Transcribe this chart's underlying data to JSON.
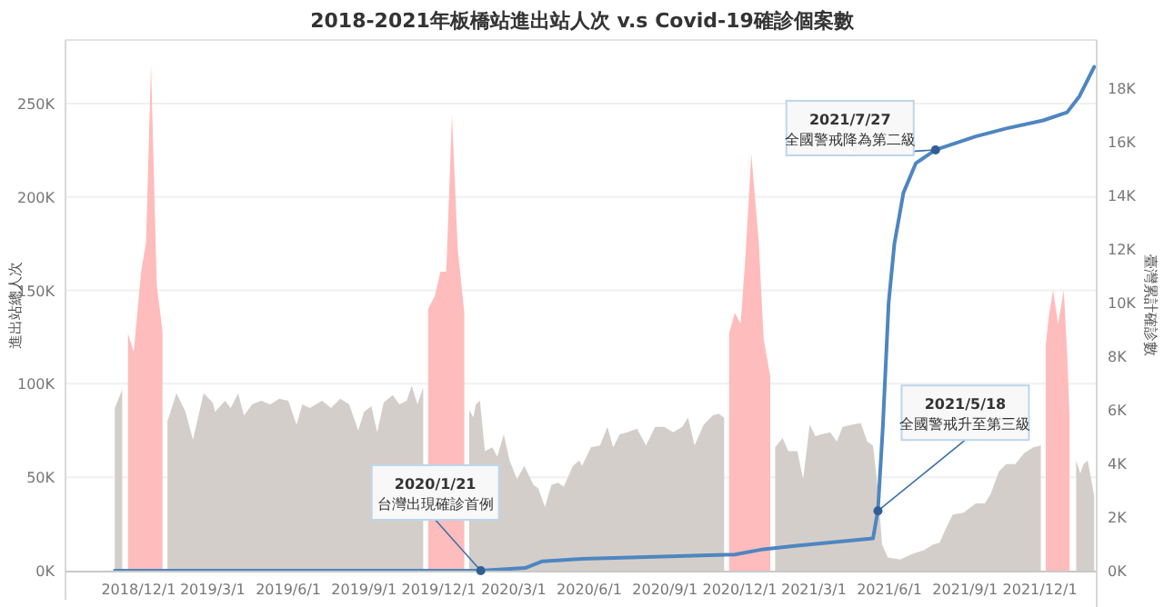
{
  "chart_data": {
    "type": "area",
    "title": "2018-2021年板橋站進出站人次 v.s Covid-19確診個案數",
    "ylabel": "進出站總人次",
    "y2label": "臺灣累計確診數",
    "xlim": [
      "2018-09-03",
      "2022-02-08"
    ],
    "xticks": [
      {
        "value": "2018-12-01",
        "label": "2018/12/1"
      },
      {
        "value": "2019-03-01",
        "label": "2019/3/1"
      },
      {
        "value": "2019-06-01",
        "label": "2019/6/1"
      },
      {
        "value": "2019-09-01",
        "label": "2019/9/1"
      },
      {
        "value": "2019-12-01",
        "label": "2019/12/1"
      },
      {
        "value": "2020-03-01",
        "label": "2020/3/1"
      },
      {
        "value": "2020-06-01",
        "label": "2020/6/1"
      },
      {
        "value": "2020-09-01",
        "label": "2020/9/1"
      },
      {
        "value": "2020-12-01",
        "label": "2020/12/1"
      },
      {
        "value": "2021-03-01",
        "label": "2021/3/1"
      },
      {
        "value": "2021-06-01",
        "label": "2021/6/1"
      },
      {
        "value": "2021-09-01",
        "label": "2021/9/1"
      },
      {
        "value": "2021-12-01",
        "label": "2021/12/1"
      }
    ],
    "ylim": [
      0,
      284000
    ],
    "yticks": [
      {
        "value": 0,
        "label": "0K"
      },
      {
        "value": 50000,
        "label": "50K"
      },
      {
        "value": 100000,
        "label": "100K"
      },
      {
        "value": 150000,
        "label": "150K"
      },
      {
        "value": 200000,
        "label": "200K"
      },
      {
        "value": 250000,
        "label": "250K"
      }
    ],
    "y2lim": [
      0,
      19800
    ],
    "y2ticks": [
      {
        "value": 0,
        "label": "0K"
      },
      {
        "value": 2000,
        "label": "2K"
      },
      {
        "value": 4000,
        "label": "4K"
      },
      {
        "value": 6000,
        "label": "6K"
      },
      {
        "value": 8000,
        "label": "8K"
      },
      {
        "value": 10000,
        "label": "10K"
      },
      {
        "value": 12000,
        "label": "12K"
      },
      {
        "value": 14000,
        "label": "14K"
      },
      {
        "value": 16000,
        "label": "16K"
      },
      {
        "value": 18000,
        "label": "18K"
      }
    ],
    "grid": "y",
    "series": [
      {
        "color": "#d4cecb",
        "x": [
          "2018-11-02",
          "2018-11-11"
        ],
        "values": [
          87000,
          97000
        ]
      },
      {
        "color": "#d4cecb",
        "x": [
          "2019-01-05",
          "2019-01-16",
          "2019-01-27",
          "2019-02-05",
          "2019-02-18",
          "2019-03-01",
          "2019-03-04",
          "2019-03-16",
          "2019-03-23",
          "2019-04-01",
          "2019-04-08",
          "2019-04-18",
          "2019-04-29",
          "2019-05-10",
          "2019-05-21",
          "2019-06-01",
          "2019-06-11",
          "2019-06-18",
          "2019-06-27",
          "2019-07-12",
          "2019-07-23",
          "2019-08-03",
          "2019-08-14",
          "2019-08-25",
          "2019-09-01",
          "2019-09-10",
          "2019-09-17",
          "2019-09-25",
          "2019-10-06",
          "2019-10-14",
          "2019-10-23",
          "2019-10-29",
          "2019-11-05",
          "2019-11-12"
        ],
        "values": [
          80000,
          95000,
          85000,
          70000,
          95000,
          90000,
          85000,
          91000,
          87000,
          95000,
          83000,
          89000,
          91000,
          89000,
          92000,
          91000,
          78000,
          89000,
          87000,
          91000,
          87000,
          92000,
          89000,
          75000,
          85000,
          88000,
          74000,
          90000,
          94000,
          89000,
          91000,
          99000,
          89000,
          98000
        ]
      },
      {
        "color": "#d4cecb",
        "x": [
          "2020-01-07",
          "2020-01-12",
          "2020-01-15",
          "2020-01-20",
          "2020-01-26",
          "2020-02-04",
          "2020-02-10",
          "2020-02-18",
          "2020-02-25",
          "2020-03-05",
          "2020-03-14",
          "2020-03-25",
          "2020-03-31",
          "2020-04-08",
          "2020-04-16",
          "2020-04-24",
          "2020-05-01",
          "2020-05-12",
          "2020-05-20",
          "2020-05-23",
          "2020-06-03",
          "2020-06-14",
          "2020-06-23",
          "2020-06-30",
          "2020-07-08",
          "2020-07-17",
          "2020-07-29",
          "2020-08-09",
          "2020-08-20",
          "2020-08-31",
          "2020-09-11",
          "2020-09-22",
          "2020-09-29",
          "2020-10-07",
          "2020-10-18",
          "2020-10-29",
          "2020-11-05",
          "2020-11-12"
        ],
        "values": [
          86000,
          82000,
          89000,
          91000,
          64000,
          66000,
          61000,
          73000,
          59000,
          49000,
          56000,
          46000,
          44000,
          34000,
          46000,
          47000,
          45000,
          56000,
          59000,
          56000,
          66000,
          67000,
          77000,
          66000,
          73000,
          74000,
          76000,
          67000,
          77000,
          77000,
          74000,
          77000,
          82000,
          67000,
          78000,
          83000,
          84000,
          82000
        ]
      },
      {
        "color": "#d4cecb",
        "x": [
          "2021-01-13",
          "2021-01-22",
          "2021-01-29",
          "2021-02-09",
          "2021-02-16",
          "2021-02-24",
          "2021-03-03",
          "2021-03-10",
          "2021-03-21",
          "2021-03-29",
          "2021-04-05",
          "2021-04-16",
          "2021-04-27",
          "2021-05-05",
          "2021-05-12",
          "2021-05-18",
          "2021-05-23",
          "2021-05-30",
          "2021-06-14",
          "2021-06-29",
          "2021-07-13",
          "2021-07-24",
          "2021-08-01",
          "2021-08-08",
          "2021-08-17",
          "2021-08-30",
          "2021-09-14",
          "2021-09-25",
          "2021-10-02",
          "2021-10-12",
          "2021-10-21",
          "2021-11-01",
          "2021-11-12",
          "2021-11-23",
          "2021-12-02"
        ],
        "values": [
          66000,
          71000,
          64000,
          64000,
          49000,
          78000,
          72000,
          73000,
          74000,
          69000,
          77000,
          78000,
          79000,
          69000,
          67000,
          43000,
          14000,
          7000,
          6000,
          9000,
          11000,
          14000,
          15000,
          22000,
          30000,
          31000,
          36000,
          36000,
          41000,
          53000,
          57000,
          57000,
          63000,
          66000,
          67000
        ]
      },
      {
        "color": "#d4cecb",
        "x": [
          "2022-01-14",
          "2022-01-19",
          "2022-01-23",
          "2022-01-28",
          "2022-02-05"
        ],
        "values": [
          59000,
          52000,
          57000,
          59000,
          40000
        ]
      },
      {
        "color": "#ffbcbc",
        "x": [
          "2018-11-18",
          "2018-11-25",
          "2018-12-04",
          "2018-12-10",
          "2018-12-16",
          "2018-12-23",
          "2018-12-30"
        ],
        "values": [
          127000,
          117000,
          160000,
          176000,
          271000,
          153000,
          128000
        ]
      },
      {
        "color": "#ffbcbc",
        "x": [
          "2019-11-18",
          "2019-11-26",
          "2019-12-03",
          "2019-12-10",
          "2019-12-17",
          "2019-12-24",
          "2020-01-01"
        ],
        "values": [
          140000,
          147000,
          160000,
          160000,
          244000,
          172000,
          138000
        ]
      },
      {
        "color": "#ffbcbc",
        "x": [
          "2020-11-18",
          "2020-11-25",
          "2020-12-02",
          "2020-12-08",
          "2020-12-15",
          "2020-12-24",
          "2020-12-30",
          "2021-01-07"
        ],
        "values": [
          127000,
          138000,
          132000,
          169000,
          223000,
          176000,
          124000,
          104000
        ]
      },
      {
        "color": "#ffbcbc",
        "x": [
          "2021-12-08",
          "2021-12-12",
          "2021-12-17",
          "2021-12-23",
          "2021-12-30",
          "2022-01-03",
          "2022-01-06"
        ],
        "values": [
          121000,
          137000,
          150000,
          132000,
          150000,
          117000,
          82000
        ]
      },
      {
        "type": "line",
        "axis": "y2",
        "color": "#4e86c0",
        "x": [
          "2018-11-02",
          "2020-01-21",
          "2020-03-15",
          "2020-04-05",
          "2020-05-23",
          "2020-11-25",
          "2020-12-30",
          "2021-02-06",
          "2021-05-12",
          "2021-05-18",
          "2021-05-24",
          "2021-05-31",
          "2021-06-07",
          "2021-06-18",
          "2021-07-03",
          "2021-07-27",
          "2021-09-14",
          "2021-10-21",
          "2021-12-05",
          "2022-01-03",
          "2022-01-18",
          "2022-02-05"
        ],
        "values": [
          0,
          0,
          100,
          350,
          440,
          600,
          800,
          920,
          1200,
          2260,
          5400,
          10000,
          12200,
          14100,
          15200,
          15700,
          16200,
          16500,
          16800,
          17100,
          17700,
          18800
        ]
      }
    ],
    "annotations": [
      {
        "text": "2020/1/21\n台灣出現確診首例",
        "x": "2020-01-21",
        "y": 0
      },
      "2021/7/27\n全國警戒降為第二級",
      {
        "text": "2021/5/18\n全國警戒升至第三級",
        "x": "2021-05-18",
        "y": 32000
      }
    ]
  }
}
